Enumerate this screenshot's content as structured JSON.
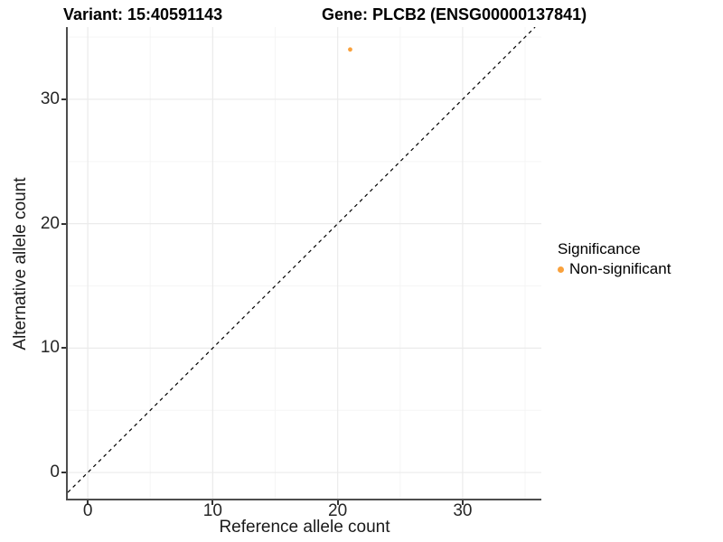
{
  "chart_data": {
    "type": "scatter",
    "title_left": "Variant: 15:40591143",
    "title_right": "Gene: PLCB2 (ENSG00000137841)",
    "xlabel": "Reference allele count",
    "ylabel": "Alternative allele count",
    "xlim": [
      -1.6,
      36.3
    ],
    "ylim": [
      -2.1,
      35.8
    ],
    "xticks": [
      0,
      10,
      20,
      30
    ],
    "yticks": [
      0,
      10,
      20,
      30
    ],
    "xticks_minor": [
      5,
      15,
      25,
      35
    ],
    "yticks_minor": [
      5,
      15,
      25,
      35
    ],
    "grid": "major and minor, light gray on white",
    "points": [
      {
        "x": 21,
        "y": 34,
        "series": "Non-significant"
      }
    ],
    "identity_line": {
      "slope": 1,
      "intercept": 0,
      "style": "dashed"
    },
    "legend": {
      "title": "Significance",
      "position": "right",
      "entries": [
        {
          "label": "Non-significant",
          "color": "#F9A13C"
        }
      ]
    }
  },
  "colors": {
    "point": "#F9A13C",
    "identity_line": "#000000",
    "axis_line": "#4d4d4d",
    "tick_mark": "#333333",
    "tick_label": "#262626",
    "grid_major": "#ebebeb",
    "grid_minor": "#f5f5f5",
    "background": "#ffffff"
  }
}
